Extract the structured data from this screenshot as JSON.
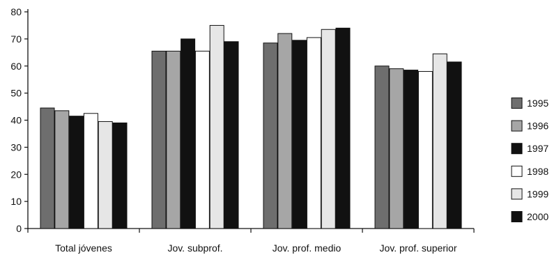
{
  "chart_data": {
    "type": "bar",
    "title": "",
    "xlabel": "",
    "ylabel": "",
    "ylim": [
      0,
      80
    ],
    "yticks": [
      "0",
      "10",
      "20",
      "30",
      "40",
      "50",
      "60",
      "70",
      "80"
    ],
    "grid": false,
    "legend_position": "right",
    "categories": [
      "Total jóvenes",
      "Jov. subprof.",
      "Jov. prof. medio",
      "Jov. prof. superior"
    ],
    "series": [
      {
        "name": "1995",
        "color": "#6e6e6e",
        "values": [
          44.5,
          65.5,
          68.5,
          60
        ]
      },
      {
        "name": "1996",
        "color": "#a6a6a6",
        "values": [
          43.5,
          65.5,
          72,
          59
        ]
      },
      {
        "name": "1997",
        "color": "#111111",
        "values": [
          41.5,
          70,
          69.5,
          58.5
        ]
      },
      {
        "name": "1998",
        "color": "#ffffff",
        "values": [
          42.5,
          65.5,
          70.5,
          58
        ]
      },
      {
        "name": "1999",
        "color": "#e6e6e6",
        "values": [
          39.5,
          75,
          73.5,
          64.5
        ]
      },
      {
        "name": "2000",
        "color": "#111111",
        "values": [
          39,
          69,
          74,
          61.5
        ]
      }
    ]
  }
}
